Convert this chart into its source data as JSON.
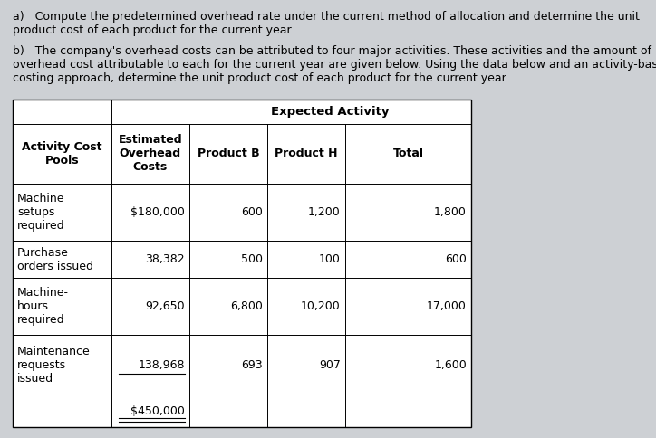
{
  "bg_color": "#cdd0d4",
  "table_bg": "#dce1e8",
  "text_color": "#000000",
  "para_a": "a)   Compute the predetermined overhead rate under the current method of allocation and determine the unit\nproduct cost of each product for the current year",
  "para_b": "b)   The company's overhead costs can be attributed to four major activities. These activities and the amount of\noverhead cost attributable to each for the current year are given below. Using the data below and an activity-based\ncosting approach, determine the unit product cost of each product for the current year.",
  "header_span": "Expected Activity",
  "col_headers": [
    "Activity Cost\nPools",
    "Estimated\nOverhead\nCosts",
    "Product B",
    "Product H",
    "Total"
  ],
  "rows": [
    [
      "Machine\nsetups\nrequired",
      "$180,000",
      "600",
      "1,200",
      "1,800"
    ],
    [
      "Purchase\norders issued",
      "38,382",
      "500",
      "100",
      "600"
    ],
    [
      "Machine-\nhours\nrequired",
      "92,650",
      "6,800",
      "10,200",
      "17,000"
    ],
    [
      "Maintenance\nrequests\nissued",
      "138,968",
      "693",
      "907",
      "1,600"
    ],
    [
      "",
      "$450,000",
      "",
      "",
      ""
    ]
  ],
  "col_aligns": [
    "left",
    "right",
    "right",
    "right",
    "right"
  ],
  "figw": 7.24,
  "figh": 4.84,
  "dpi": 100
}
